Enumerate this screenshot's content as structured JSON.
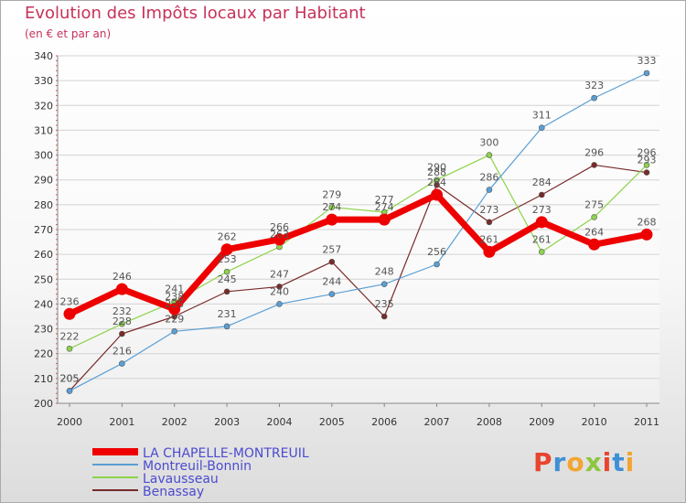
{
  "title": "Evolution des Impôts locaux par Habitant",
  "subtitle": "(en € et par an)",
  "logo": {
    "text": "Proxiti",
    "colors": [
      "#e8442f",
      "#3e8fd6",
      "#f2a531",
      "#8dc63f",
      "#e8442f",
      "#3e8fd6",
      "#f2a531"
    ]
  },
  "chart_data": {
    "type": "line",
    "title": "Evolution des Impôts locaux par Habitant",
    "subtitle": "(en € et par an)",
    "xlabel": "",
    "ylabel": "",
    "x": [
      "2000",
      "2001",
      "2002",
      "2003",
      "2004",
      "2005",
      "2006",
      "2007",
      "2008",
      "2009",
      "2010",
      "2011"
    ],
    "ylim": [
      200,
      340
    ],
    "yticks": [
      200,
      210,
      220,
      230,
      240,
      250,
      260,
      270,
      280,
      290,
      300,
      310,
      320,
      330,
      340
    ],
    "grid": "horizontal",
    "legend": "bottom-left",
    "series": [
      {
        "name": "LA CHAPELLE-MONTREUIL",
        "color": "#ee0000",
        "values": [
          236,
          246,
          238,
          262,
          266,
          274,
          274,
          284,
          261,
          273,
          264,
          268
        ],
        "labels": [
          "236",
          "246",
          "238",
          "262",
          "266",
          "274",
          "274",
          "284",
          "261",
          "273",
          "264",
          "268"
        ]
      },
      {
        "name": "Montreuil-Bonnin",
        "color": "#5a9fd4",
        "values": [
          205,
          216,
          229,
          231,
          240,
          244,
          248,
          256,
          286,
          311,
          323,
          333
        ],
        "labels": [
          "205",
          "216",
          "229",
          "231",
          "240",
          "244",
          "248",
          "256",
          "286",
          "311",
          "323",
          "333"
        ]
      },
      {
        "name": "Lavausseau",
        "color": "#8dd34a",
        "values": [
          222,
          232,
          241,
          253,
          263,
          279,
          277,
          290,
          300,
          261,
          275,
          296
        ],
        "labels": [
          "222",
          "232",
          "241",
          "253",
          "263",
          "279",
          "277",
          "290",
          "300",
          "261",
          "275",
          "296"
        ]
      },
      {
        "name": "Benassay",
        "color": "#7a2a2a",
        "values": [
          205,
          228,
          235,
          245,
          247,
          257,
          235,
          288,
          273,
          284,
          296,
          293
        ],
        "labels": [
          "205",
          "228",
          "235",
          "245",
          "247",
          "257",
          "235",
          "288",
          "273",
          "284",
          "296",
          "293"
        ]
      }
    ]
  }
}
